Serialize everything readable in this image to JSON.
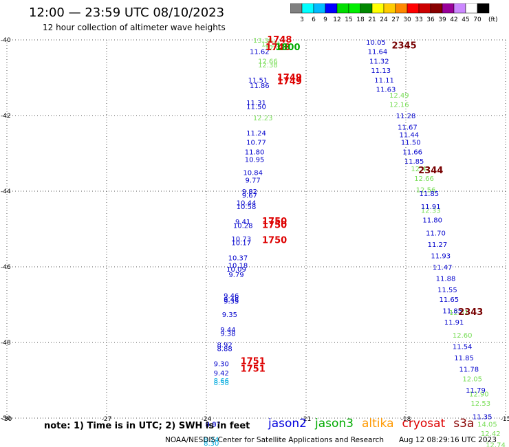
{
  "header": {
    "title": "12:00 — 23:59 UTC 08/10/2023",
    "subtitle": "12 hour collection of altimeter wave heights"
  },
  "footer": {
    "note": "note: 1) Time is in UTC; 2) SWH is in feet",
    "satellites": [
      {
        "name": "jason2",
        "color": "#0000dd"
      },
      {
        "name": "jason3",
        "color": "#00aa00"
      },
      {
        "name": "altika",
        "color": "#ff9900"
      },
      {
        "name": "cryosat",
        "color": "#dd0000"
      },
      {
        "name": "s3a",
        "color": "#880000"
      }
    ],
    "credit": "NOAA/NESDIS Center for Satellite Applications and Research",
    "timestamp": "Aug 12 08:29:16 UTC 2023"
  },
  "legend": {
    "unit": "(ft)",
    "colors": [
      "#808080",
      "#00ffff",
      "#00bbff",
      "#0000ff",
      "#00dd00",
      "#00ee00",
      "#008800",
      "#ffff00",
      "#ffcc00",
      "#ff8800",
      "#ff0000",
      "#cc0000",
      "#880000",
      "#990099",
      "#cc88ff",
      "#ffffff",
      "#000000"
    ],
    "labels": [
      "3",
      "6",
      "9",
      "12",
      "15",
      "18",
      "21",
      "24",
      "27",
      "30",
      "33",
      "36",
      "39",
      "42",
      "45",
      "70"
    ]
  },
  "chart_data": {
    "type": "scatter",
    "title": "12:00 — 23:59 UTC 08/10/2023",
    "subtitle": "12 hour collection of altimeter wave heights",
    "xlim": [
      -30,
      -15
    ],
    "ylim": [
      -50,
      -40
    ],
    "x_ticks": [
      -30,
      -27,
      -24,
      -21,
      -18,
      -15
    ],
    "y_ticks": [
      -40,
      -42,
      -44,
      -46,
      -48,
      -50
    ],
    "grid": true,
    "series": [
      {
        "name": "jason3",
        "color": "#77dd55",
        "points": [
          [
            -22.3,
            -40.0,
            "13.36"
          ],
          [
            -22.05,
            -40.1,
            "12.31"
          ],
          [
            -21.95,
            -40.2,
            "12.41"
          ],
          [
            -22.15,
            -40.55,
            "12.66"
          ],
          [
            -22.15,
            -40.65,
            "12.38"
          ],
          [
            -22.3,
            -42.05,
            "12.23"
          ],
          [
            -18.2,
            -41.45,
            "12.49"
          ],
          [
            -18.2,
            -41.7,
            "12.16"
          ],
          [
            -17.55,
            -43.4,
            "12.41"
          ],
          [
            -17.45,
            -43.65,
            "12.66"
          ],
          [
            -17.4,
            -43.95,
            "12.56"
          ],
          [
            -17.25,
            -44.5,
            "12.33"
          ],
          [
            -16.4,
            -47.2,
            "12.51"
          ],
          [
            -16.3,
            -47.8,
            "12.60"
          ],
          [
            -16.0,
            -48.95,
            "12.05"
          ],
          [
            -15.8,
            -49.35,
            "12.90"
          ],
          [
            -15.75,
            -49.6,
            "12.53"
          ],
          [
            -15.55,
            -50.15,
            "14.05"
          ],
          [
            -15.45,
            -50.4,
            "12.42"
          ],
          [
            -15.3,
            -50.7,
            "12.74"
          ]
        ]
      },
      {
        "name": "jason2",
        "color": "#0000cc",
        "points": [
          [
            -22.4,
            -40.3,
            "11.62"
          ],
          [
            -22.45,
            -41.05,
            "11.51"
          ],
          [
            -22.4,
            -41.2,
            "11.86"
          ],
          [
            -22.5,
            -41.65,
            "11.31"
          ],
          [
            -22.5,
            -41.75,
            "11.50"
          ],
          [
            -22.5,
            -42.45,
            "11.24"
          ],
          [
            -22.5,
            -42.7,
            "10.77"
          ],
          [
            -22.55,
            -42.95,
            "11.80"
          ],
          [
            -22.55,
            -43.15,
            "10.95"
          ],
          [
            -22.6,
            -43.5,
            "10.84"
          ],
          [
            -22.6,
            -43.7,
            "9.77"
          ],
          [
            -22.7,
            -44.0,
            "9.82"
          ],
          [
            -22.7,
            -44.1,
            "9.67"
          ],
          [
            -22.8,
            -44.3,
            "10.44"
          ],
          [
            -22.8,
            -44.4,
            "10.58"
          ],
          [
            -22.9,
            -44.8,
            "9.41"
          ],
          [
            -22.9,
            -44.9,
            "10.28"
          ],
          [
            -22.95,
            -45.25,
            "10.73"
          ],
          [
            -22.95,
            -45.35,
            "10.17"
          ],
          [
            -23.05,
            -45.75,
            "10.37"
          ],
          [
            -23.05,
            -45.95,
            "10.18"
          ],
          [
            -23.1,
            -46.05,
            "10.09"
          ],
          [
            -23.1,
            -46.2,
            "9.79"
          ],
          [
            -23.25,
            -46.75,
            "9.46"
          ],
          [
            -23.25,
            -46.85,
            "9.48"
          ],
          [
            -23.25,
            -46.9,
            "9.35"
          ],
          [
            -23.3,
            -47.25,
            "9.35"
          ],
          [
            -23.35,
            -47.65,
            "9.44"
          ],
          [
            -23.35,
            -47.75,
            "9.38"
          ],
          [
            -23.45,
            -48.05,
            "8.92"
          ],
          [
            -23.45,
            -48.15,
            "8.88"
          ],
          [
            -23.55,
            -48.55,
            "9.30"
          ],
          [
            -23.55,
            -48.8,
            "9.42"
          ],
          [
            -23.8,
            -50.15,
            "8.87"
          ],
          [
            -23.8,
            -50.15,
            "9.07"
          ],
          [
            -18.9,
            -40.05,
            "10.05"
          ],
          [
            -18.85,
            -40.3,
            "11.64"
          ],
          [
            -18.8,
            -40.55,
            "11.32"
          ],
          [
            -18.75,
            -40.8,
            "11.13"
          ],
          [
            -18.65,
            -41.05,
            "11.11"
          ],
          [
            -18.6,
            -41.3,
            "11.63"
          ],
          [
            -18.0,
            -42.0,
            "11.28"
          ],
          [
            -17.95,
            -42.3,
            "11.67"
          ],
          [
            -17.9,
            -42.5,
            "11.44"
          ],
          [
            -17.85,
            -42.7,
            "11.50"
          ],
          [
            -17.8,
            -42.95,
            "11.66"
          ],
          [
            -17.75,
            -43.2,
            "11.85"
          ],
          [
            -17.3,
            -44.05,
            "11.85"
          ],
          [
            -17.25,
            -44.4,
            "11.91"
          ],
          [
            -17.2,
            -44.75,
            "11.80"
          ],
          [
            -17.1,
            -45.1,
            "11.70"
          ],
          [
            -17.05,
            -45.4,
            "11.27"
          ],
          [
            -16.95,
            -45.7,
            "11.93"
          ],
          [
            -16.9,
            -46.0,
            "11.47"
          ],
          [
            -16.8,
            -46.3,
            "11.88"
          ],
          [
            -16.75,
            -46.6,
            "11.55"
          ],
          [
            -16.7,
            -46.85,
            "11.65"
          ],
          [
            -16.6,
            -47.15,
            "11.85"
          ],
          [
            -16.55,
            -47.45,
            "11.91"
          ],
          [
            -16.3,
            -48.1,
            "11.54"
          ],
          [
            -16.25,
            -48.4,
            "11.85"
          ],
          [
            -16.1,
            -48.7,
            "11.78"
          ],
          [
            -15.9,
            -49.25,
            "11.79"
          ],
          [
            -15.7,
            -49.95,
            "11.35"
          ]
        ]
      },
      {
        "name": "jason2-low",
        "color": "#00aadd",
        "points": [
          [
            -23.55,
            -49.0,
            "8.66"
          ],
          [
            -23.55,
            -49.05,
            "8.58"
          ],
          [
            -23.85,
            -50.55,
            "8.24"
          ],
          [
            -23.85,
            -50.65,
            "8.30"
          ]
        ]
      },
      {
        "name": "cryosat",
        "color": "#dd0000",
        "points": [
          [
            -21.8,
            -40.0,
            "1748"
          ],
          [
            -21.85,
            -40.2,
            "1748"
          ],
          [
            -21.5,
            -41.0,
            "1749"
          ],
          [
            -21.5,
            -41.1,
            "1749"
          ],
          [
            -21.95,
            -44.8,
            "1750"
          ],
          [
            -21.95,
            -44.9,
            "1750"
          ],
          [
            -21.95,
            -45.3,
            "1750"
          ],
          [
            -22.6,
            -48.5,
            "1751"
          ],
          [
            -22.6,
            -48.7,
            "1751"
          ]
        ]
      },
      {
        "name": "jason3-red",
        "color": "#00aa00",
        "points": [
          [
            -21.55,
            -40.2,
            "1800"
          ]
        ]
      },
      {
        "name": "s3a",
        "color": "#770000",
        "points": [
          [
            -18.05,
            -40.15,
            "2345"
          ],
          [
            -17.25,
            -43.45,
            "2344"
          ],
          [
            -16.05,
            -47.2,
            "2343"
          ]
        ]
      }
    ]
  }
}
